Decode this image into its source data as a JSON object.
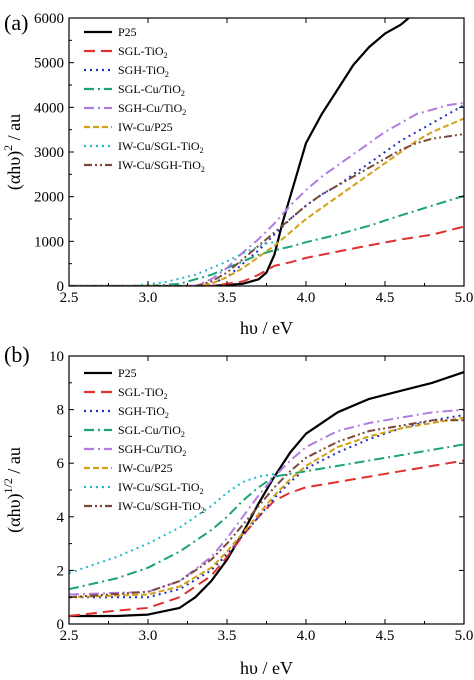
{
  "figure": {
    "panels": [
      "(a)",
      "(b)"
    ]
  },
  "chart_data": [
    {
      "type": "line",
      "panel_label": "(a)",
      "xlabel": "hυ / eV",
      "ylabel": {
        "main": "(αhυ)",
        "sup": "2",
        "unit": " / au"
      },
      "xlim": [
        2.5,
        5.0
      ],
      "ylim": [
        0,
        6000
      ],
      "xticks": [
        "2.5",
        "3.0",
        "3.5",
        "4.0",
        "4.5",
        "5.0"
      ],
      "yticks": [
        "0",
        "1000",
        "2000",
        "3000",
        "4000",
        "5000",
        "6000"
      ],
      "grid": false,
      "legend_position": "top-left",
      "series": [
        {
          "name": "P25",
          "name_main": "P25",
          "name_sub": "",
          "color": "#000000",
          "dash": "solid",
          "x": [
            2.5,
            3.4,
            3.6,
            3.7,
            3.75,
            3.8,
            3.85,
            3.9,
            3.95,
            4.0,
            4.1,
            4.2,
            4.3,
            4.4,
            4.5,
            4.6,
            4.65
          ],
          "y": [
            0,
            0,
            50,
            150,
            300,
            700,
            1400,
            2000,
            2600,
            3200,
            3850,
            4400,
            4950,
            5350,
            5650,
            5850,
            6000
          ]
        },
        {
          "name": "SGL-TiO2",
          "name_main": "SGL-TiO",
          "name_sub": "2",
          "color": "#e03030",
          "dash": "longdash",
          "x": [
            2.5,
            3.4,
            3.6,
            3.7,
            3.8,
            3.9,
            4.0,
            4.2,
            4.4,
            4.6,
            4.8,
            5.0
          ],
          "y": [
            0,
            0,
            100,
            250,
            450,
            530,
            630,
            770,
            910,
            1040,
            1150,
            1330
          ]
        },
        {
          "name": "SGH-TiO2",
          "name_main": "SGH-TiO",
          "name_sub": "2",
          "color": "#2030c0",
          "dash": "dot",
          "x": [
            2.5,
            3.3,
            3.4,
            3.5,
            3.6,
            3.7,
            3.8,
            3.9,
            4.0,
            4.1,
            4.2,
            4.3,
            4.4,
            4.5,
            4.6,
            4.7,
            4.8,
            4.9,
            5.0
          ],
          "y": [
            0,
            0,
            50,
            200,
            500,
            800,
            1150,
            1500,
            1800,
            2050,
            2250,
            2500,
            2750,
            3000,
            3250,
            3450,
            3650,
            3850,
            4050
          ]
        },
        {
          "name": "SGL-Cu/TiO2",
          "name_main": "SGL-Cu/TiO",
          "name_sub": "2",
          "color": "#1aa37a",
          "dash": "dashdot",
          "x": [
            2.5,
            3.0,
            3.2,
            3.4,
            3.6,
            3.7,
            3.8,
            3.9,
            4.0,
            4.2,
            4.4,
            4.6,
            4.8,
            5.0
          ],
          "y": [
            0,
            0,
            50,
            250,
            550,
            700,
            800,
            880,
            980,
            1150,
            1350,
            1580,
            1800,
            2020
          ]
        },
        {
          "name": "SGH-Cu/TiO2",
          "name_main": "SGH-Cu/TiO",
          "name_sub": "2",
          "color": "#b07ce0",
          "dash": "dashdot",
          "x": [
            2.5,
            3.3,
            3.4,
            3.5,
            3.6,
            3.7,
            3.8,
            3.9,
            4.0,
            4.1,
            4.2,
            4.3,
            4.4,
            4.5,
            4.6,
            4.7,
            4.8,
            4.9,
            5.0
          ],
          "y": [
            0,
            0,
            150,
            400,
            750,
            1050,
            1400,
            1800,
            2150,
            2450,
            2700,
            2950,
            3200,
            3450,
            3650,
            3850,
            3950,
            4050,
            4100
          ]
        },
        {
          "name": "IW-Cu/P25",
          "name_main": "IW-Cu/P25",
          "name_sub": "",
          "color": "#d4a017",
          "dash": "shortdash",
          "x": [
            2.5,
            3.3,
            3.4,
            3.5,
            3.6,
            3.7,
            3.8,
            3.9,
            4.0,
            4.1,
            4.2,
            4.3,
            4.4,
            4.5,
            4.6,
            4.7,
            4.8,
            4.9,
            5.0
          ],
          "y": [
            0,
            0,
            50,
            200,
            400,
            650,
            900,
            1200,
            1500,
            1750,
            2000,
            2250,
            2500,
            2750,
            3000,
            3250,
            3450,
            3600,
            3750
          ]
        },
        {
          "name": "IW-Cu/SGL-TiO2",
          "name_main": "IW-Cu/SGL-TiO",
          "name_sub": "2",
          "color": "#20b8c8",
          "dash": "dot",
          "x": [
            2.5,
            2.9,
            3.1,
            3.3,
            3.5,
            3.6,
            3.7,
            3.75,
            3.8
          ],
          "y": [
            0,
            0,
            80,
            250,
            550,
            730,
            880,
            950,
            980
          ]
        },
        {
          "name": "IW-Cu/SGH-TiO2",
          "name_main": "IW-Cu/SGH-TiO",
          "name_sub": "2",
          "color": "#7a4a3a",
          "dash": "dashdotdot",
          "x": [
            2.5,
            3.3,
            3.4,
            3.5,
            3.6,
            3.7,
            3.8,
            3.9,
            4.0,
            4.1,
            4.2,
            4.3,
            4.4,
            4.5,
            4.6,
            4.7,
            4.8,
            4.9,
            5.0
          ],
          "y": [
            0,
            0,
            100,
            300,
            600,
            900,
            1200,
            1500,
            1800,
            2050,
            2250,
            2450,
            2650,
            2850,
            3050,
            3200,
            3300,
            3350,
            3400
          ]
        }
      ]
    },
    {
      "type": "line",
      "panel_label": "(b)",
      "xlabel": "hυ / eV",
      "ylabel": {
        "main": "(αhυ)",
        "sup": "1/2",
        "unit": " / au"
      },
      "xlim": [
        2.5,
        5.0
      ],
      "ylim": [
        0,
        10
      ],
      "xticks": [
        "2.5",
        "3.0",
        "3.5",
        "4.0",
        "4.5",
        "5.0"
      ],
      "yticks": [
        "0",
        "2",
        "4",
        "6",
        "8",
        "10"
      ],
      "grid": false,
      "legend_position": "top-left",
      "series": [
        {
          "name": "P25",
          "name_main": "P25",
          "name_sub": "",
          "color": "#000000",
          "dash": "solid",
          "x": [
            2.5,
            2.8,
            3.0,
            3.2,
            3.3,
            3.4,
            3.5,
            3.6,
            3.7,
            3.8,
            3.9,
            4.0,
            4.2,
            4.4,
            4.6,
            4.8,
            5.0
          ],
          "y": [
            0.3,
            0.3,
            0.35,
            0.6,
            1.0,
            1.6,
            2.4,
            3.4,
            4.5,
            5.5,
            6.4,
            7.1,
            7.9,
            8.4,
            8.7,
            9.0,
            9.4
          ]
        },
        {
          "name": "SGL-TiO2",
          "name_main": "SGL-TiO",
          "name_sub": "2",
          "color": "#e03030",
          "dash": "longdash",
          "x": [
            2.5,
            2.8,
            3.0,
            3.2,
            3.4,
            3.5,
            3.6,
            3.7,
            3.8,
            3.9,
            4.0,
            4.2,
            4.4,
            4.6,
            4.8,
            5.0
          ],
          "y": [
            0.3,
            0.5,
            0.6,
            1.0,
            1.8,
            2.5,
            3.3,
            4.0,
            4.6,
            4.9,
            5.1,
            5.3,
            5.5,
            5.7,
            5.9,
            6.1
          ]
        },
        {
          "name": "SGH-TiO2",
          "name_main": "SGH-TiO",
          "name_sub": "2",
          "color": "#2030c0",
          "dash": "dot",
          "x": [
            2.5,
            3.0,
            3.2,
            3.4,
            3.5,
            3.6,
            3.7,
            3.8,
            3.9,
            4.0,
            4.2,
            4.4,
            4.6,
            4.8,
            5.0
          ],
          "y": [
            1.0,
            1.0,
            1.3,
            2.0,
            2.6,
            3.3,
            4.0,
            4.7,
            5.3,
            5.8,
            6.4,
            6.9,
            7.3,
            7.6,
            7.8
          ]
        },
        {
          "name": "SGL-Cu/TiO2",
          "name_main": "SGL-Cu/TiO",
          "name_sub": "2",
          "color": "#1aa37a",
          "dash": "dashdot",
          "x": [
            2.5,
            2.8,
            3.0,
            3.2,
            3.4,
            3.5,
            3.6,
            3.7,
            3.8,
            3.9,
            4.0,
            4.2,
            4.4,
            4.6,
            4.8,
            5.0
          ],
          "y": [
            1.3,
            1.7,
            2.1,
            2.7,
            3.5,
            4.0,
            4.6,
            5.1,
            5.5,
            5.6,
            5.7,
            5.9,
            6.1,
            6.3,
            6.5,
            6.7
          ]
        },
        {
          "name": "SGH-Cu/TiO2",
          "name_main": "SGH-Cu/TiO",
          "name_sub": "2",
          "color": "#b07ce0",
          "dash": "dashdot",
          "x": [
            2.5,
            3.0,
            3.2,
            3.4,
            3.5,
            3.6,
            3.7,
            3.8,
            3.9,
            4.0,
            4.2,
            4.4,
            4.6,
            4.8,
            5.0
          ],
          "y": [
            1.1,
            1.2,
            1.6,
            2.5,
            3.2,
            4.0,
            4.8,
            5.5,
            6.1,
            6.6,
            7.2,
            7.5,
            7.7,
            7.9,
            8.0
          ]
        },
        {
          "name": "IW-Cu/P25",
          "name_main": "IW-Cu/P25",
          "name_sub": "",
          "color": "#d4a017",
          "dash": "shortdash",
          "x": [
            2.5,
            3.0,
            3.2,
            3.4,
            3.5,
            3.6,
            3.7,
            3.8,
            3.9,
            4.0,
            4.2,
            4.4,
            4.6,
            4.8,
            5.0
          ],
          "y": [
            1.0,
            1.1,
            1.4,
            2.1,
            2.7,
            3.4,
            4.1,
            4.8,
            5.4,
            5.9,
            6.6,
            7.0,
            7.3,
            7.5,
            7.7
          ]
        },
        {
          "name": "IW-Cu/SGL-TiO2",
          "name_main": "IW-Cu/SGL-TiO",
          "name_sub": "2",
          "color": "#20b8c8",
          "dash": "dot",
          "x": [
            2.5,
            2.8,
            3.0,
            3.2,
            3.4,
            3.5,
            3.6,
            3.7,
            3.8
          ],
          "y": [
            1.9,
            2.5,
            3.0,
            3.6,
            4.4,
            4.9,
            5.3,
            5.5,
            5.6
          ]
        },
        {
          "name": "IW-Cu/SGH-TiO2",
          "name_main": "IW-Cu/SGH-TiO",
          "name_sub": "2",
          "color": "#7a4a3a",
          "dash": "dashdotdot",
          "x": [
            2.5,
            3.0,
            3.2,
            3.4,
            3.5,
            3.6,
            3.7,
            3.8,
            3.9,
            4.0,
            4.2,
            4.4,
            4.6,
            4.8,
            5.0
          ],
          "y": [
            1.0,
            1.2,
            1.6,
            2.4,
            3.0,
            3.7,
            4.4,
            5.1,
            5.7,
            6.2,
            6.8,
            7.2,
            7.4,
            7.6,
            7.6
          ]
        }
      ]
    }
  ]
}
